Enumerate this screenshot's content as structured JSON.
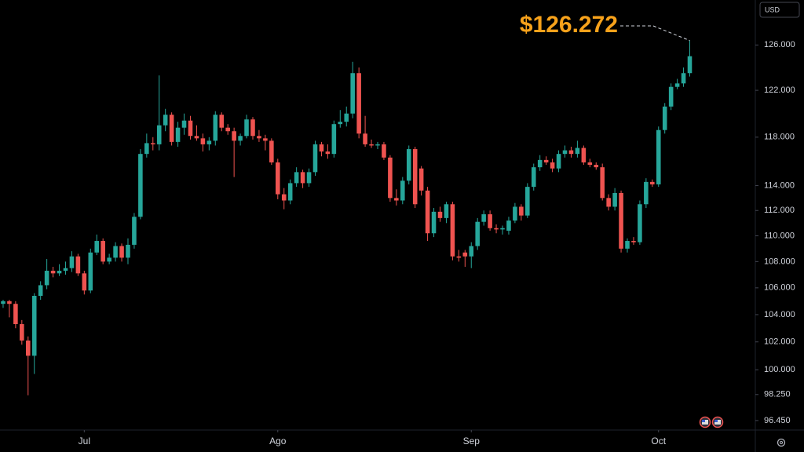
{
  "chart_data": {
    "type": "candlestick",
    "currency": "USD",
    "annotation": "$126.272",
    "log_scale": true,
    "grid": false,
    "colors": {
      "up": "#26a69a",
      "down": "#ef5350",
      "annotation": "#f7a21b"
    },
    "xlim": [
      -0.5,
      120.25
    ],
    "xticks": [
      {
        "value": 13,
        "label": "Jul"
      },
      {
        "value": 44,
        "label": "Ago"
      },
      {
        "value": 75,
        "label": "Sep"
      },
      {
        "value": 105,
        "label": "Oct"
      }
    ],
    "ylim": [
      95.8,
      130.1
    ],
    "yticks": [
      {
        "value": 126,
        "label": "126.000"
      },
      {
        "value": 122,
        "label": "122.000"
      },
      {
        "value": 118,
        "label": "118.000"
      },
      {
        "value": 114,
        "label": "114.000"
      },
      {
        "value": 112,
        "label": "112.000"
      },
      {
        "value": 110,
        "label": "110.000"
      },
      {
        "value": 108,
        "label": "108.000"
      },
      {
        "value": 106,
        "label": "106.000"
      },
      {
        "value": 104,
        "label": "104.000"
      },
      {
        "value": 102,
        "label": "102.000"
      },
      {
        "value": 100,
        "label": "100.000"
      },
      {
        "value": 98.25,
        "label": "98.250"
      },
      {
        "value": 96.45,
        "label": "96.450"
      }
    ],
    "open": [
      104.8,
      105.0,
      104.8,
      103.3,
      102.1,
      101.0,
      105.4,
      106.2,
      107.3,
      107.1,
      107.3,
      107.5,
      108.4,
      107.1,
      105.8,
      108.7,
      109.6,
      108.0,
      108.3,
      109.2,
      108.3,
      109.3,
      111.5,
      116.6,
      117.5,
      117.4,
      119.0,
      119.9,
      117.6,
      118.8,
      119.4,
      118.1,
      117.9,
      117.4,
      117.7,
      119.9,
      118.8,
      118.5,
      117.7,
      118.1,
      119.5,
      118.1,
      117.9,
      117.7,
      115.9,
      113.3,
      112.8,
      114.2,
      115.1,
      114.2,
      115.1,
      117.4,
      116.8,
      116.6,
      119.1,
      119.3,
      120.0,
      123.5,
      118.3,
      117.4,
      117.3,
      117.4,
      116.3,
      113.0,
      112.8,
      114.4,
      117.0,
      115.4,
      113.6,
      110.2,
      111.9,
      111.4,
      112.5,
      108.4,
      108.7,
      108.4,
      109.2,
      111.1,
      111.7,
      110.6,
      110.5,
      110.4,
      111.2,
      112.3,
      111.6,
      113.9,
      115.5,
      116.1,
      115.9,
      115.4,
      116.6,
      116.9,
      116.6,
      117.1,
      115.9,
      115.7,
      115.5,
      113.0,
      112.3,
      113.4,
      109.0,
      109.6,
      109.5,
      112.5,
      114.3,
      114.1,
      118.6,
      120.6,
      122.3,
      122.6,
      123.5
    ],
    "high": [
      105.1,
      105.1,
      105.0,
      103.6,
      102.4,
      105.6,
      106.5,
      108.2,
      107.6,
      107.8,
      108.0,
      108.8,
      108.6,
      107.3,
      109.0,
      110.1,
      109.8,
      108.6,
      109.5,
      109.4,
      109.8,
      111.8,
      117.0,
      118.3,
      118.0,
      123.3,
      120.4,
      120.1,
      119.3,
      120.0,
      119.8,
      119.0,
      118.3,
      118.0,
      120.2,
      120.1,
      119.1,
      118.8,
      118.3,
      119.9,
      119.7,
      118.6,
      118.2,
      117.9,
      116.2,
      113.8,
      114.5,
      115.5,
      115.3,
      115.4,
      117.7,
      117.6,
      117.4,
      119.4,
      120.3,
      120.6,
      124.5,
      124.0,
      119.8,
      117.8,
      117.6,
      117.6,
      116.5,
      113.7,
      114.7,
      117.3,
      117.2,
      115.6,
      113.9,
      112.2,
      112.3,
      112.7,
      112.7,
      108.9,
      108.9,
      109.5,
      111.4,
      112.0,
      112.0,
      110.9,
      110.8,
      111.5,
      112.6,
      112.5,
      114.2,
      115.8,
      116.5,
      116.4,
      116.2,
      116.9,
      117.3,
      117.2,
      117.7,
      117.3,
      116.2,
      115.9,
      115.8,
      113.3,
      113.8,
      113.6,
      109.8,
      109.9,
      112.8,
      114.6,
      114.5,
      118.9,
      120.9,
      122.6,
      123.0,
      124.0,
      126.4
    ],
    "low": [
      104.5,
      103.8,
      103.0,
      101.8,
      98.2,
      99.7,
      105.1,
      105.9,
      106.8,
      106.9,
      107.0,
      107.2,
      106.9,
      105.5,
      105.6,
      108.5,
      107.8,
      107.8,
      108.0,
      108.0,
      107.8,
      109.0,
      111.3,
      116.3,
      116.9,
      116.9,
      118.5,
      117.3,
      117.2,
      118.2,
      117.8,
      117.7,
      116.8,
      116.9,
      117.3,
      118.5,
      118.2,
      114.7,
      117.3,
      117.9,
      117.8,
      117.6,
      116.9,
      115.7,
      112.9,
      112.1,
      112.5,
      113.9,
      113.8,
      113.9,
      114.8,
      116.4,
      116.2,
      116.3,
      118.8,
      118.9,
      119.6,
      117.9,
      117.2,
      117.1,
      117.0,
      116.1,
      112.7,
      112.4,
      112.5,
      114.1,
      112.2,
      113.2,
      109.6,
      109.9,
      111.1,
      111.0,
      108.1,
      108.0,
      107.6,
      107.5,
      108.9,
      110.8,
      110.4,
      110.2,
      110.1,
      110.1,
      111.0,
      111.2,
      111.4,
      113.6,
      115.2,
      115.7,
      115.1,
      115.1,
      116.3,
      116.3,
      116.3,
      115.7,
      115.5,
      115.3,
      112.8,
      112.0,
      112.0,
      108.7,
      108.7,
      109.3,
      109.3,
      112.2,
      113.9,
      113.9,
      118.3,
      120.3,
      122.1,
      122.3,
      123.2
    ],
    "close": [
      105.0,
      104.8,
      103.3,
      102.1,
      101.0,
      105.4,
      106.2,
      107.3,
      107.1,
      107.3,
      107.5,
      108.4,
      107.1,
      105.8,
      108.7,
      109.6,
      108.0,
      108.3,
      109.2,
      108.3,
      109.3,
      111.5,
      116.6,
      117.5,
      117.4,
      119.0,
      119.9,
      117.6,
      118.8,
      119.4,
      118.1,
      117.9,
      117.4,
      117.7,
      119.9,
      118.8,
      118.5,
      117.7,
      118.1,
      119.5,
      118.1,
      117.9,
      117.7,
      115.9,
      113.3,
      112.8,
      114.2,
      115.1,
      114.2,
      115.1,
      117.4,
      116.8,
      116.6,
      119.1,
      119.3,
      120.0,
      123.5,
      118.3,
      117.4,
      117.3,
      117.4,
      116.3,
      113.0,
      112.8,
      114.4,
      117.0,
      112.5,
      113.6,
      110.2,
      111.9,
      111.4,
      112.5,
      108.4,
      108.3,
      108.4,
      109.2,
      111.1,
      111.7,
      110.6,
      110.5,
      110.6,
      111.2,
      112.3,
      111.6,
      113.9,
      115.5,
      116.1,
      115.9,
      115.4,
      116.6,
      116.9,
      116.6,
      117.1,
      115.9,
      115.7,
      115.5,
      113.0,
      112.3,
      113.4,
      109.0,
      109.6,
      109.5,
      112.5,
      114.3,
      114.1,
      118.6,
      120.6,
      122.3,
      122.6,
      123.5,
      125.0
    ]
  }
}
